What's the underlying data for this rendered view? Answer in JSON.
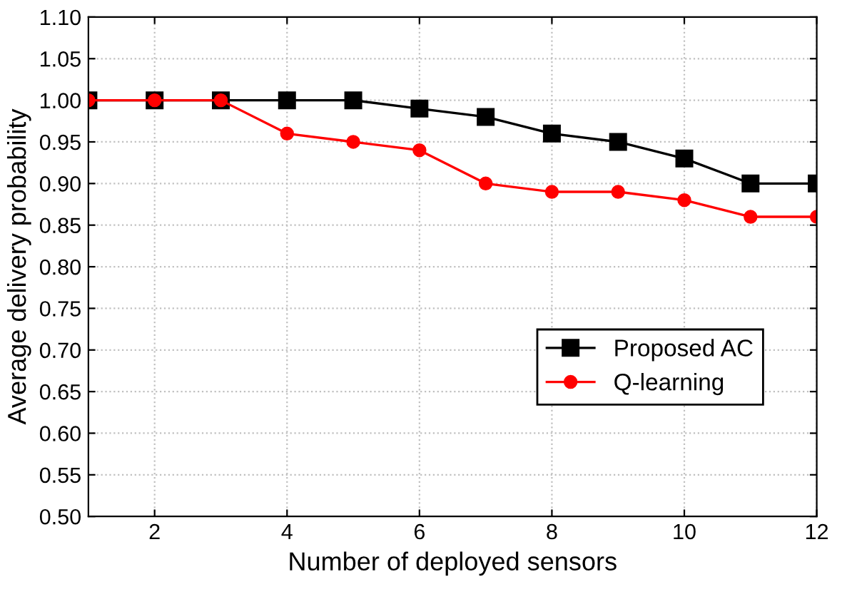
{
  "chart_data": {
    "type": "line",
    "xlabel": "Number of deployed sensors",
    "ylabel": "Average delivery probability",
    "x": [
      1,
      2,
      3,
      4,
      5,
      6,
      7,
      8,
      9,
      10,
      11,
      12
    ],
    "series": [
      {
        "name": "Proposed AC",
        "color": "#000000",
        "marker": "square",
        "values": [
          1.0,
          1.0,
          1.0,
          1.0,
          1.0,
          0.99,
          0.98,
          0.96,
          0.95,
          0.93,
          0.9,
          0.9
        ]
      },
      {
        "name": "Q-learning",
        "color": "#ff0000",
        "marker": "circle",
        "values": [
          1.0,
          1.0,
          1.0,
          0.96,
          0.95,
          0.94,
          0.9,
          0.89,
          0.89,
          0.88,
          0.86,
          0.86
        ]
      }
    ],
    "xlim": [
      1,
      12
    ],
    "xticks": [
      2,
      4,
      6,
      8,
      10,
      12
    ],
    "ylim": [
      0.5,
      1.1
    ],
    "yticks": [
      {
        "value": 0.5,
        "label": "0.50"
      },
      {
        "value": 0.55,
        "label": "0.55"
      },
      {
        "value": 0.6,
        "label": "0.60"
      },
      {
        "value": 0.65,
        "label": "0.65"
      },
      {
        "value": 0.7,
        "label": "0.70"
      },
      {
        "value": 0.75,
        "label": "0.75"
      },
      {
        "value": 0.8,
        "label": "0.80"
      },
      {
        "value": 0.85,
        "label": "0.85"
      },
      {
        "value": 0.9,
        "label": "0.90"
      },
      {
        "value": 0.95,
        "label": "0.95"
      },
      {
        "value": 1.0,
        "label": "1.00"
      },
      {
        "value": 1.05,
        "label": "1.05"
      },
      {
        "value": 1.1,
        "label": "1.10"
      }
    ],
    "grid": true,
    "legend": "right",
    "line_style": "solid"
  }
}
